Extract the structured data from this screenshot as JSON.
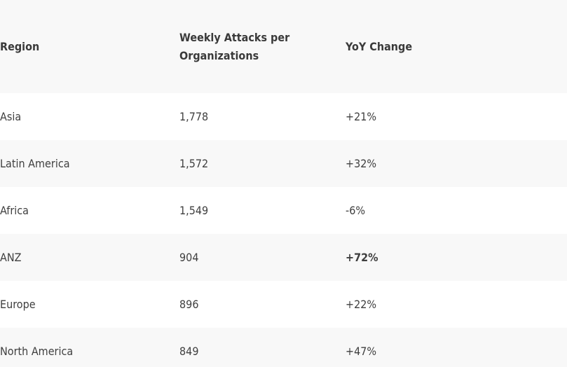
{
  "table": {
    "headers": [
      "Region",
      "Weekly Attacks per Organizations",
      "YoY Change"
    ],
    "rows": [
      {
        "region": "Asia",
        "attacks": "1,778",
        "change": "+21%"
      },
      {
        "region": "Latin America",
        "attacks": "1,572",
        "change": "+32%"
      },
      {
        "region": "Africa",
        "attacks": "1,549",
        "change": "-6%"
      },
      {
        "region": "ANZ",
        "attacks": "904",
        "change": "+72%"
      },
      {
        "region": "Europe",
        "attacks": "896",
        "change": "+22%"
      },
      {
        "region": "North America",
        "attacks": "849",
        "change": "+47%"
      }
    ]
  }
}
